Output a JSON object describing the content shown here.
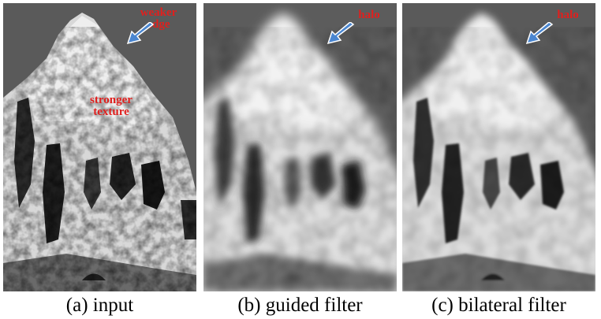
{
  "figure": {
    "panels": [
      {
        "id": "a",
        "caption": "(a) input",
        "annotations": [
          "weaker",
          "edge",
          "stronger",
          "texture"
        ]
      },
      {
        "id": "b",
        "caption": "(b) guided filter",
        "annotations": [
          "halo"
        ]
      },
      {
        "id": "c",
        "caption": "(c) bilateral filter",
        "annotations": [
          "halo"
        ]
      }
    ]
  },
  "colors": {
    "annotation_text": "#e0201e",
    "arrow": "#4a86d0",
    "sky": "#5a5a5a"
  },
  "icons": [
    "arrow-icon"
  ]
}
